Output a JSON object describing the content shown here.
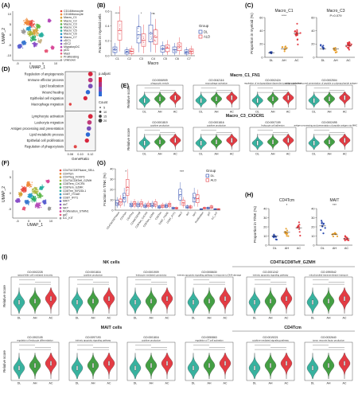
{
  "colors": {
    "DL": "#1f3fa8",
    "AH": "#e69a22",
    "AC": "#e2323a",
    "ALD": "#e2323a",
    "teal": "#2eae9a",
    "green": "#3a9a3a",
    "violet": "#8a6fbf"
  },
  "panels": {
    "A": {
      "label": "(A)",
      "xlabel": "UMAP_1",
      "ylabel": "UMAP_2",
      "xticks": [
        "-5",
        "0",
        "5",
        "10"
      ],
      "yticks": [
        "10",
        "5",
        "0",
        "-5",
        "-10"
      ],
      "legend": [
        {
          "name": "CD14Monocyte",
          "color": "#e8463c"
        },
        {
          "name": "CD16Monocyte",
          "color": "#f08a3a"
        },
        {
          "name": "Macro_C1",
          "color": "#d6a23a"
        },
        {
          "name": "Macro_C2",
          "color": "#a8b63a"
        },
        {
          "name": "Macro_C3",
          "color": "#5fb84a"
        },
        {
          "name": "Macro_C4",
          "color": "#2eae6a"
        },
        {
          "name": "Macro_C5",
          "color": "#2ab0a0"
        },
        {
          "name": "Macro_C6",
          "color": "#2a9ec8"
        },
        {
          "name": "Macro_C7",
          "color": "#3a78d0"
        },
        {
          "name": "cDC1",
          "color": "#5a5fd0"
        },
        {
          "name": "cDC2",
          "color": "#8a4fc8"
        },
        {
          "name": "MigratoryDC",
          "color": "#b44ab8"
        },
        {
          "name": "pDC",
          "color": "#d84a9a"
        },
        {
          "name": "Mast",
          "color": "#e85a7a"
        },
        {
          "name": "Proliferating",
          "color": "#c8b48a"
        },
        {
          "name": "Unknown",
          "color": "#9a9a9a"
        }
      ]
    },
    "B": {
      "label": "(B)",
      "ylabel": "Fraction in myeloid cells",
      "xlabel": "Macro",
      "categories": [
        "C1",
        "C2",
        "C3",
        "C4",
        "C5",
        "C6",
        "C7"
      ],
      "legend_title": "Group",
      "groups": [
        "DL",
        "ALD"
      ],
      "ylim": [
        0,
        0.6
      ],
      "yticks": [
        "0.0",
        "0.2",
        "0.4",
        "0.6"
      ],
      "sig": [
        "****",
        "",
        "*",
        "ns",
        "",
        "",
        ""
      ],
      "chart_data": {
        "type": "box",
        "categories": [
          "C1",
          "C2",
          "C3",
          "C4",
          "C5",
          "C6",
          "C7"
        ],
        "series": [
          {
            "name": "DL",
            "medians": [
              0.08,
              0.05,
              0.28,
              0.3,
              0.09,
              0.08,
              0.05
            ]
          },
          {
            "name": "ALD",
            "medians": [
              0.34,
              0.06,
              0.21,
              0.25,
              0.1,
              0.12,
              0.06
            ]
          }
        ]
      }
    },
    "C": {
      "label": "(C)",
      "ylabel": "Proportion in myeloid (%)",
      "categories": [
        "DL",
        "AH",
        "AC"
      ],
      "sub": [
        {
          "title": "Macro_C1",
          "sig": "****",
          "ylim": [
            0,
            60
          ],
          "yticks": [
            "0",
            "20",
            "40",
            "60"
          ],
          "means": [
            7,
            13,
            36
          ]
        },
        {
          "title": "Macro_C3",
          "sig": "P=0.079",
          "ylim": [
            0,
            60
          ],
          "yticks": [
            "0",
            "20",
            "40",
            "60"
          ],
          "means": [
            13,
            13,
            18
          ]
        }
      ]
    },
    "D": {
      "label": "(D)",
      "xlabel": "GeneRatio",
      "xticks": [
        "0.08",
        "0.10",
        "0.12"
      ],
      "color_title": "p.adjust",
      "size_title": "Count",
      "size_values": [
        "5",
        "10",
        "15",
        "20"
      ],
      "top_terms": [
        {
          "term": "Regulation of angiogenesis",
          "ratio": 0.12
        },
        {
          "term": "Immune effector process",
          "ratio": 0.12
        },
        {
          "term": "Lipid localization",
          "ratio": 0.12
        },
        {
          "term": "Wound healing",
          "ratio": 0.115
        },
        {
          "term": "Epithelial cell migration",
          "ratio": 0.11
        },
        {
          "term": "Macrophage migration",
          "ratio": 0.08
        }
      ],
      "bottom_terms": [
        {
          "term": "Lymphocyte activation",
          "ratio": 0.12
        },
        {
          "term": "Leukocyte migration",
          "ratio": 0.118
        },
        {
          "term": "Antigen processing and presentation",
          "ratio": 0.117
        },
        {
          "term": "Lipid metabolic process",
          "ratio": 0.115
        },
        {
          "term": "Epithelial cell proliferation",
          "ratio": 0.113
        },
        {
          "term": "Regulation of phagocytosis",
          "ratio": 0.09
        }
      ]
    },
    "E": {
      "label": "(E)",
      "ylabel": "Relative score",
      "row_titles": [
        "Macro_C1_FN1",
        "Macro_C3_CX3CR1"
      ],
      "categories": [
        "DL",
        "AH",
        "AC"
      ],
      "row1": [
        {
          "go": "GO:0006909",
          "desc": "phagocytic vesicle"
        },
        {
          "go": "GO:0042116",
          "desc": "macrophage activation"
        },
        {
          "go": "GO:0002424",
          "desc": "regulation of endopeptidase-dependent protein catabolism"
        },
        {
          "go": "GO:0002504",
          "desc": "antigen processing and presentation of peptide or polysaccharide antigen via MHC class II"
        }
      ],
      "row2": [
        {
          "go": "GO:0001819",
          "desc": "cytokine production"
        },
        {
          "go": "GO:0001816",
          "desc": "cytokine production"
        },
        {
          "go": "GO:0007159",
          "desc": "leukocyte cell adhesion"
        },
        {
          "go": "GO:0002495",
          "desc": "antigen processing and presentation of peptide antigen via MHC class II"
        }
      ],
      "sig": [
        "****",
        "****",
        "***"
      ]
    },
    "F": {
      "label": "(F)",
      "xlabel": "UMAP_1",
      "ylabel": "UMAP_2",
      "xticks": [
        "-5",
        "0",
        "5",
        "10"
      ],
      "yticks": [
        "5",
        "0",
        "-5"
      ],
      "legend": [
        {
          "name": "CD4T&CD8TNaive_SELL",
          "color": "#e8463c"
        },
        {
          "name": "CD4Tcm",
          "color": "#f08a3a"
        },
        {
          "name": "CD4Treg_FOXP3",
          "color": "#d6a23a"
        },
        {
          "name": "CD4T&CD8Teff_GZMH",
          "color": "#a8b63a"
        },
        {
          "name": "CD8Tem_CXCR4",
          "color": "#5fb84a"
        },
        {
          "name": "CD8Tem_GZMK",
          "color": "#2eae6a"
        },
        {
          "name": "CD8Trm_KIR2DL1",
          "color": "#2ab0a0"
        },
        {
          "name": "CD8T_ITGAE",
          "color": "#2a9ec8"
        },
        {
          "name": "CD8T_IFIT1",
          "color": "#3a78d0"
        },
        {
          "name": "MAIT",
          "color": "#5a5fd0"
        },
        {
          "name": "dnT",
          "color": "#8a4fc8"
        },
        {
          "name": "NKT",
          "color": "#b44ab8"
        },
        {
          "name": "Proliferation_STMN1",
          "color": "#d84a9a"
        },
        {
          "name": "gdT",
          "color": "#e85a7a"
        },
        {
          "name": "ILC_KIT",
          "color": "#9a9a9a"
        }
      ]
    },
    "G": {
      "label": "(G)",
      "ylabel": "Fraction in T/NK (%)",
      "legend_title": "Group",
      "groups": [
        "DL",
        "ALD"
      ],
      "ylim": [
        0,
        40
      ],
      "yticks": [
        "0",
        "10",
        "20",
        "30",
        "40"
      ],
      "categories": [
        "CD4T&CD8TNaive",
        "CD4Tcm",
        "CD4Treg",
        "CD4&CD8Teff",
        "CD8Tem_CXCR4",
        "CD8Tem_GZMK",
        "CD8Trm",
        "CD8T_ITGAE",
        "CD8T_IFIT1",
        "MAIT",
        "dnT",
        "NKT",
        "Proliferation",
        "gdT",
        "ILC_KIT"
      ],
      "sig": [
        "",
        "*",
        "",
        "",
        "",
        "",
        "",
        "",
        "",
        "***",
        "",
        "",
        "",
        "",
        ""
      ],
      "chart_data": {
        "type": "box",
        "series": [
          {
            "name": "DL",
            "medians": [
              7,
              12,
              5,
              5,
              4,
              5,
              3,
              4,
              2,
              15,
              3,
              12,
              1,
              2,
              1
            ]
          },
          {
            "name": "ALD",
            "medians": [
              8,
              22,
              6,
              6,
              5,
              6,
              4,
              5,
              2,
              7,
              3,
              11,
              2,
              3,
              1
            ]
          }
        ]
      }
    },
    "H": {
      "label": "(H)",
      "ylabel": "Proportion in T/NK (%)",
      "categories": [
        "DL",
        "AH",
        "AC"
      ],
      "sub": [
        {
          "title": "CD4Tcm",
          "sig": "*",
          "ylim": [
            0,
            40
          ],
          "yticks": [
            "0",
            "10",
            "20",
            "30",
            "40"
          ],
          "means": [
            10,
            14,
            19
          ]
        },
        {
          "title": "MAIT",
          "sig": "***",
          "ylim": [
            0,
            40
          ],
          "yticks": [
            "0",
            "10",
            "20",
            "30",
            "40"
          ],
          "means": [
            21,
            12,
            7
          ]
        }
      ]
    },
    "I": {
      "label": "(I)",
      "ylabel": "Relative score",
      "categories": [
        "DL",
        "AH",
        "AC"
      ],
      "sections": [
        "NK cells",
        "CD4T&CD8Teff_GZMH",
        "MAIT cells",
        "CD4Tcm"
      ],
      "row1": [
        {
          "go": "GO:0002228",
          "desc": "natural killer cell mediated immunity"
        },
        {
          "go": "GO:0001816",
          "desc": "cytokine production"
        },
        {
          "go": "GO:0001909",
          "desc": "leukocyte mediated cytotoxicity"
        },
        {
          "go": "GO:0008630",
          "desc": "intrinsic apoptotic signaling pathway in response to DNA damage"
        },
        {
          "go": "GO:2001242",
          "desc": "intrinsic apoptotic signaling pathway"
        },
        {
          "go": "GO:1990542",
          "desc": "mitochondrial transmembrane transport"
        }
      ],
      "row2": [
        {
          "go": "GO:1902105",
          "desc": "regulation of leukocyte differentiation"
        },
        {
          "go": "GO:0097193",
          "desc": "intrinsic apoptotic signaling pathway"
        },
        {
          "go": "GO:0001816",
          "desc": "cytokine production"
        },
        {
          "go": "GO:0050863",
          "desc": "regulation of T cell activation"
        },
        {
          "go": "GO:0019221",
          "desc": "cytokine-mediated signaling pathway"
        },
        {
          "go": "GO:0032640",
          "desc": "tumor necrosis factor production"
        }
      ],
      "sig": [
        "****",
        "****",
        "****"
      ]
    }
  }
}
